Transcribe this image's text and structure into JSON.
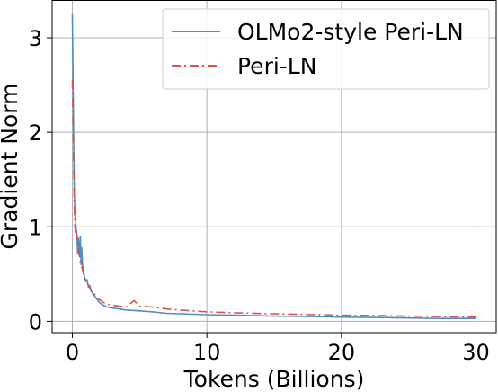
{
  "chart_data": {
    "type": "line",
    "title": "",
    "xlabel": "Tokens (Billions)",
    "ylabel": "Gradient Norm",
    "xlim": [
      -1.5,
      31.5
    ],
    "ylim": [
      -0.12,
      3.4
    ],
    "x_ticks": [
      0,
      10,
      20,
      30
    ],
    "x_tick_labels": [
      "0",
      "10",
      "20",
      "30"
    ],
    "y_ticks": [
      0,
      1,
      2,
      3
    ],
    "y_tick_labels": [
      "0",
      "1",
      "2",
      "3"
    ],
    "grid": true,
    "legend_position": "top-right",
    "series": [
      {
        "name": "OLMo2-style Peri-LN",
        "color": "#4f8fbf",
        "dash": "solid",
        "points": [
          [
            0.0,
            3.25
          ],
          [
            0.05,
            2.6
          ],
          [
            0.1,
            1.9
          ],
          [
            0.15,
            1.35
          ],
          [
            0.2,
            1.15
          ],
          [
            0.25,
            1.05
          ],
          [
            0.3,
            0.95
          ],
          [
            0.35,
            0.9
          ],
          [
            0.4,
            0.72
          ],
          [
            0.45,
            0.88
          ],
          [
            0.5,
            0.7
          ],
          [
            0.55,
            0.8
          ],
          [
            0.6,
            0.9
          ],
          [
            0.65,
            0.6
          ],
          [
            0.7,
            0.78
          ],
          [
            0.75,
            0.62
          ],
          [
            0.8,
            0.55
          ],
          [
            0.9,
            0.48
          ],
          [
            1.0,
            0.42
          ],
          [
            1.1,
            0.44
          ],
          [
            1.2,
            0.36
          ],
          [
            1.3,
            0.38
          ],
          [
            1.4,
            0.32
          ],
          [
            1.6,
            0.28
          ],
          [
            1.8,
            0.24
          ],
          [
            2.0,
            0.2
          ],
          [
            2.3,
            0.17
          ],
          [
            2.6,
            0.15
          ],
          [
            3.0,
            0.14
          ],
          [
            3.5,
            0.13
          ],
          [
            4.0,
            0.12
          ],
          [
            5.0,
            0.11
          ],
          [
            6.0,
            0.1
          ],
          [
            7.0,
            0.085
          ],
          [
            8.0,
            0.08
          ],
          [
            10.0,
            0.07
          ],
          [
            12.0,
            0.065
          ],
          [
            15.0,
            0.055
          ],
          [
            18.0,
            0.05
          ],
          [
            20.0,
            0.045
          ],
          [
            23.0,
            0.04
          ],
          [
            25.0,
            0.035
          ],
          [
            27.0,
            0.03
          ],
          [
            30.0,
            0.03
          ]
        ]
      },
      {
        "name": "Peri-LN",
        "color": "#d9534f",
        "dash": "10,4,2,4",
        "points": [
          [
            0.0,
            2.55
          ],
          [
            0.05,
            2.2
          ],
          [
            0.1,
            1.6
          ],
          [
            0.15,
            1.2
          ],
          [
            0.2,
            1.0
          ],
          [
            0.25,
            0.92
          ],
          [
            0.3,
            0.98
          ],
          [
            0.35,
            0.9
          ],
          [
            0.4,
            0.85
          ],
          [
            0.5,
            0.75
          ],
          [
            0.6,
            0.62
          ],
          [
            0.7,
            0.58
          ],
          [
            0.8,
            0.52
          ],
          [
            0.9,
            0.47
          ],
          [
            1.0,
            0.44
          ],
          [
            1.2,
            0.38
          ],
          [
            1.4,
            0.33
          ],
          [
            1.6,
            0.3
          ],
          [
            1.8,
            0.26
          ],
          [
            2.0,
            0.23
          ],
          [
            2.3,
            0.2
          ],
          [
            2.6,
            0.18
          ],
          [
            3.0,
            0.17
          ],
          [
            3.5,
            0.16
          ],
          [
            4.0,
            0.15
          ],
          [
            4.6,
            0.22
          ],
          [
            5.0,
            0.16
          ],
          [
            6.0,
            0.15
          ],
          [
            7.0,
            0.13
          ],
          [
            8.0,
            0.12
          ],
          [
            10.0,
            0.1
          ],
          [
            12.0,
            0.09
          ],
          [
            15.0,
            0.08
          ],
          [
            18.0,
            0.07
          ],
          [
            20.0,
            0.065
          ],
          [
            23.0,
            0.06
          ],
          [
            25.0,
            0.055
          ],
          [
            27.0,
            0.05
          ],
          [
            30.0,
            0.045
          ]
        ]
      }
    ]
  }
}
